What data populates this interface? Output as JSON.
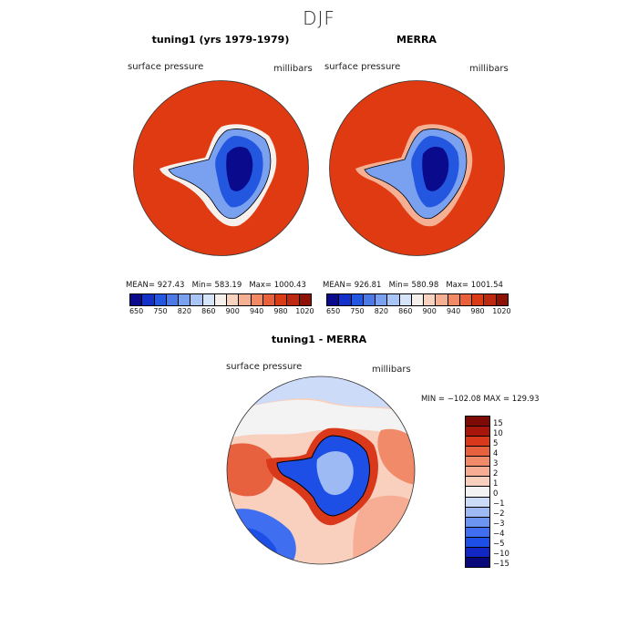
{
  "figure": {
    "season_title": "DJF"
  },
  "colors": {
    "ocean_full": "#e03a12",
    "pal_full": [
      "#0a0a8c",
      "#1330c8",
      "#2457e0",
      "#4b7ae8",
      "#7aa0f0",
      "#a9c4f6",
      "#d6e4fa",
      "#f6f0ec",
      "#f7d3c0",
      "#f5b094",
      "#f08a64",
      "#e9603a",
      "#d93c15",
      "#bd2810",
      "#8e1106"
    ],
    "pal_diff": [
      "#08087a",
      "#1226c4",
      "#1d4ee6",
      "#3f6ff0",
      "#6c95f2",
      "#9dbaf5",
      "#cbdbf8",
      "#f3f3f3",
      "#f9cfbd",
      "#f6ad93",
      "#f08a68",
      "#e8613f",
      "#d9381a",
      "#a8160b",
      "#7d0a05"
    ]
  },
  "panel_left": {
    "title": "tuning1 (yrs 1979-1979)",
    "var_label": "surface pressure",
    "unit_label": "millibars",
    "mean_label": "MEAN=",
    "mean": "927.43",
    "min_label": "Min=",
    "min": "583.19",
    "max_label": "Max=",
    "max": "1000.43"
  },
  "panel_right": {
    "title": "MERRA",
    "var_label": "surface pressure",
    "unit_label": "millibars",
    "mean_label": "MEAN=",
    "mean": "926.81",
    "min_label": "Min=",
    "min": "580.98",
    "max_label": "Max=",
    "max": "1001.54"
  },
  "colorbar_full": {
    "ticks": [
      "650",
      "750",
      "820",
      "860",
      "900",
      "940",
      "980",
      "1020"
    ]
  },
  "panel_diff": {
    "title": "tuning1 - MERRA",
    "var_label": "surface pressure",
    "unit_label": "millibars",
    "range_text": "MIN = −102.08 MAX = 129.93"
  },
  "colorbar_diff": {
    "ticks": [
      "15",
      "10",
      "5",
      "4",
      "3",
      "2",
      "1",
      "0",
      "−1",
      "−2",
      "−3",
      "−4",
      "−5",
      "−10",
      "−15"
    ]
  }
}
